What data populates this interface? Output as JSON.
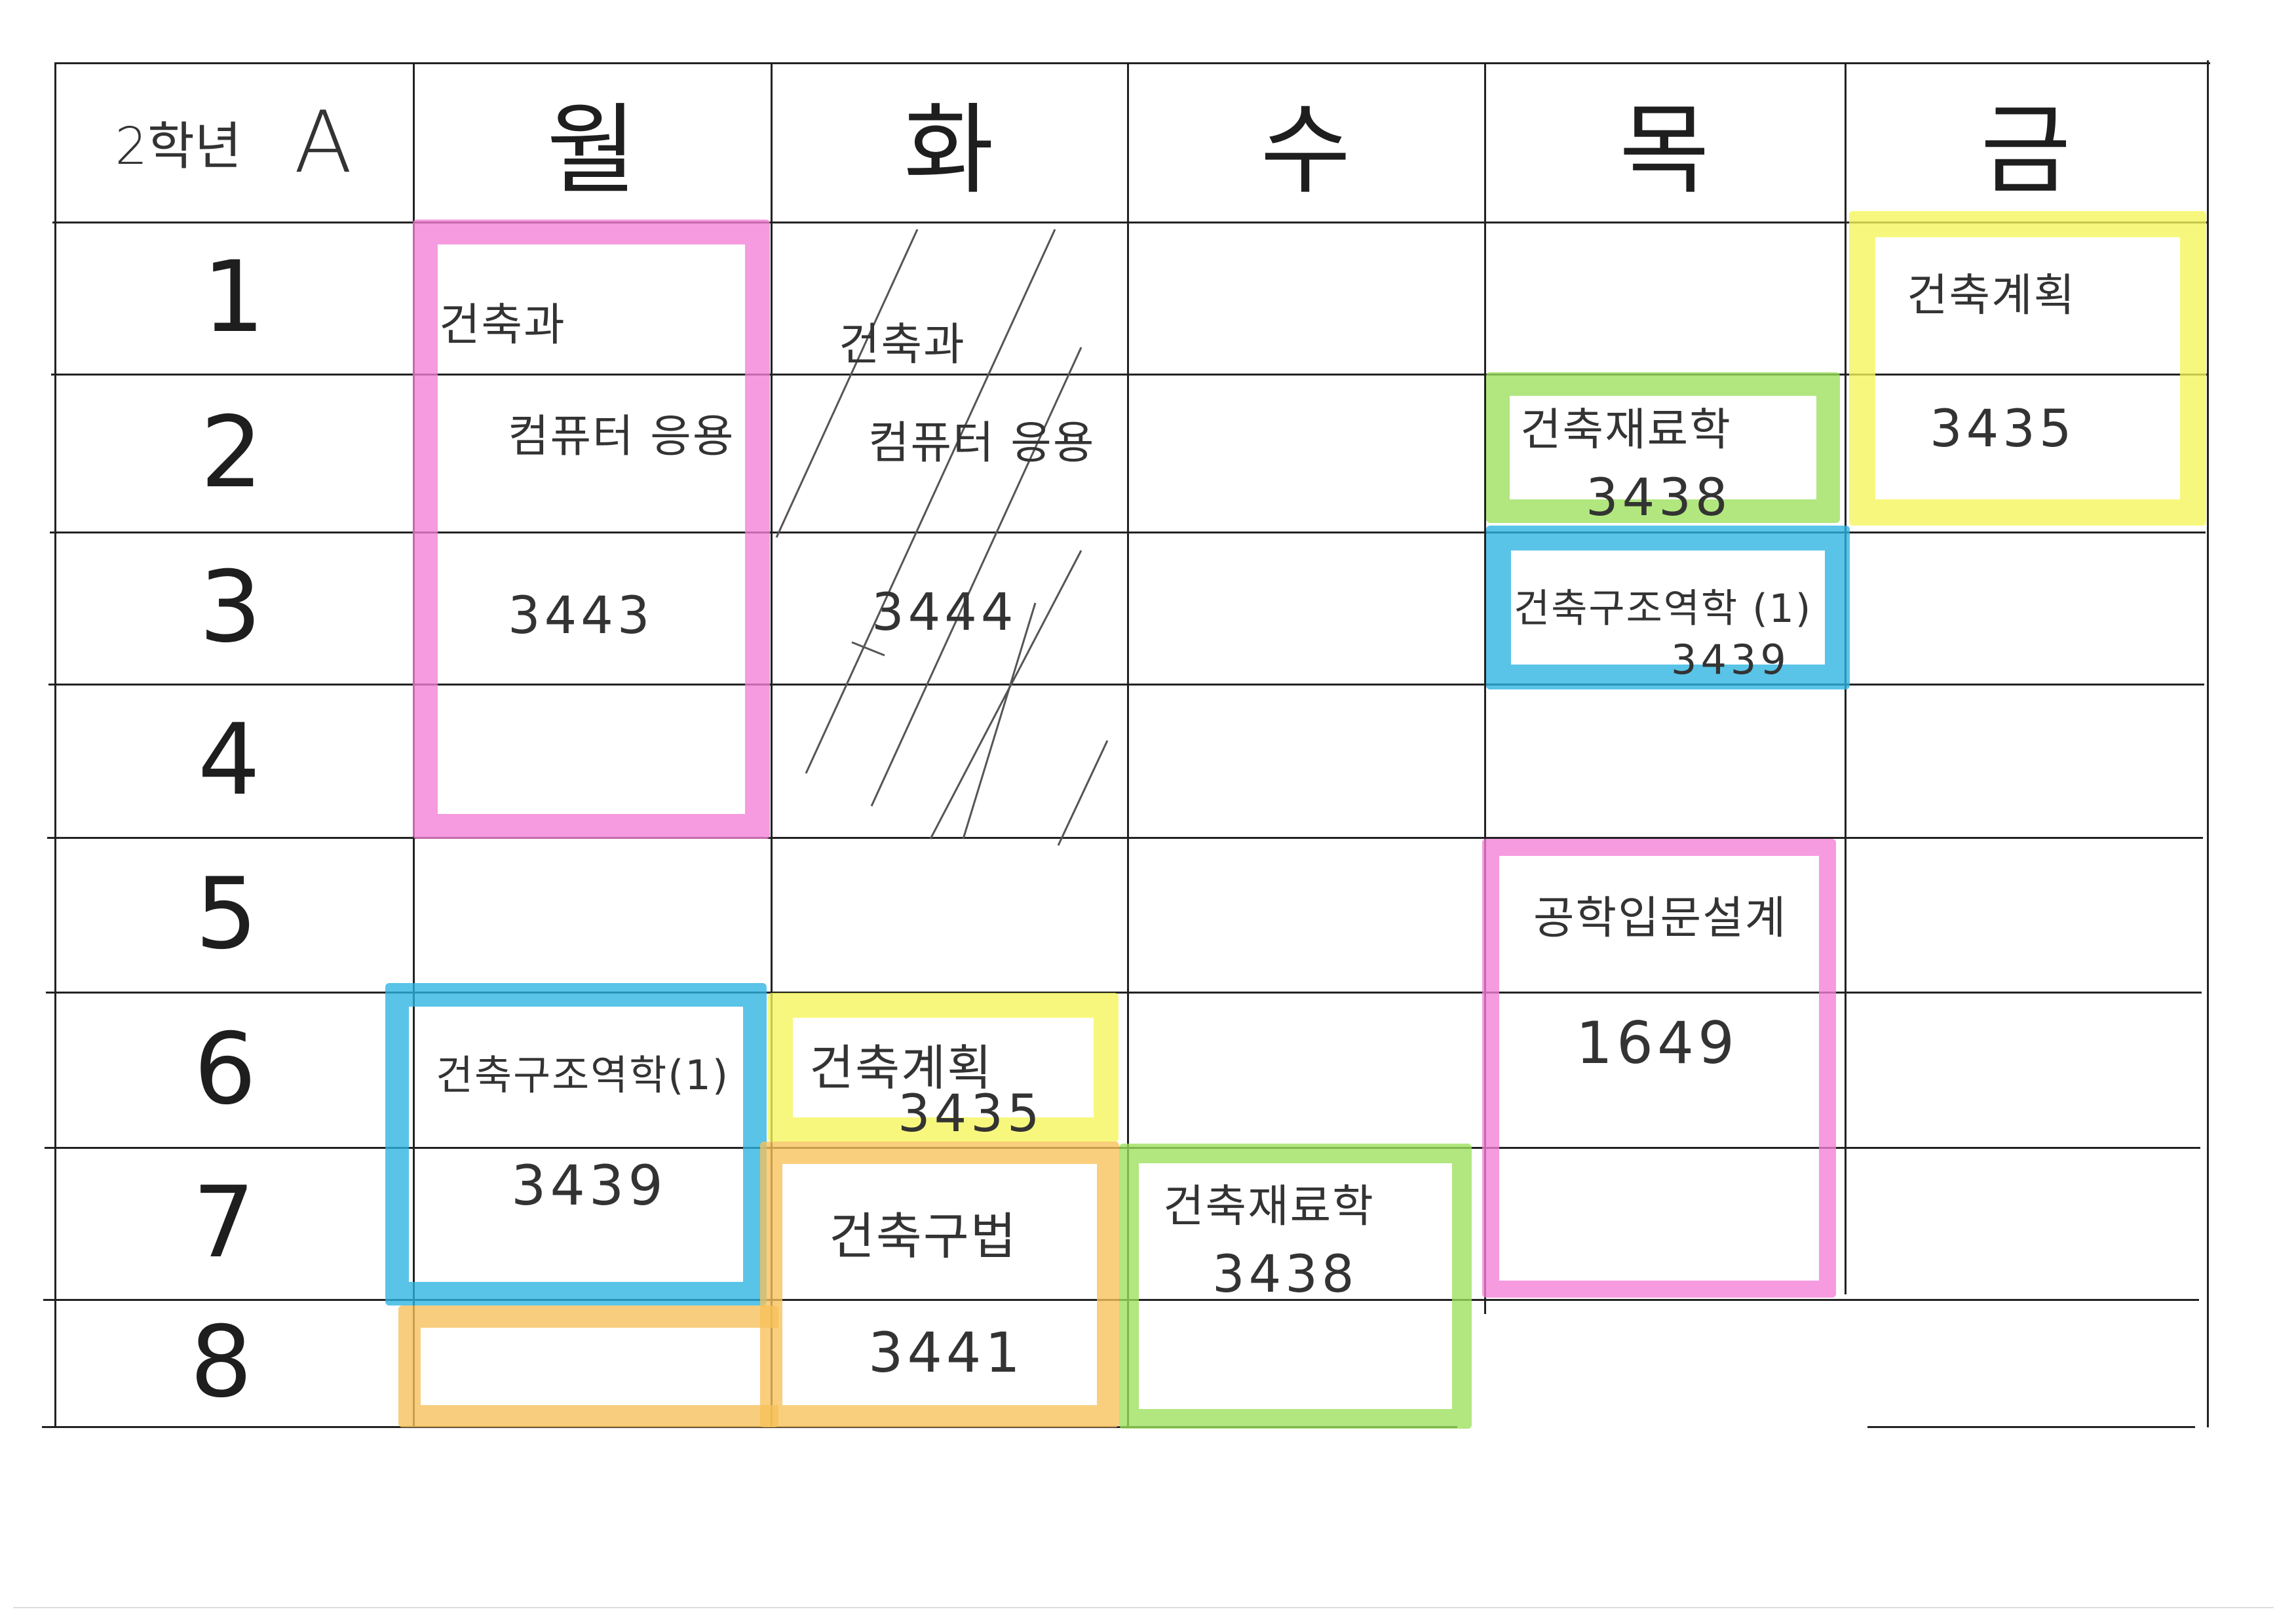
{
  "header": {
    "grade_label": "2학년",
    "section": "A",
    "days": [
      "월",
      "화",
      "수",
      "목",
      "금"
    ]
  },
  "periods": [
    "1",
    "2",
    "3",
    "4",
    "5",
    "6",
    "7",
    "8"
  ],
  "highlight_colors": {
    "pink": "#f47fd6",
    "yellow": "#f5f55a",
    "green": "#9be05a",
    "blue": "#2ab3e0",
    "orange": "#f7c15a"
  },
  "classes": [
    {
      "day": "월",
      "periods": "1-4",
      "name_line1": "건축과",
      "name_line2": "컴퓨터 응용",
      "room": "3443",
      "color": "pink"
    },
    {
      "day": "화",
      "periods": "1-4",
      "name_line1": "건축과",
      "name_line2": "컴퓨터 응용",
      "room": "3444",
      "color": "none",
      "crossed_out": true
    },
    {
      "day": "목",
      "periods": "2",
      "name": "건축재료학",
      "room": "3438",
      "color": "green"
    },
    {
      "day": "목",
      "periods": "3",
      "name": "건축구조역학 (1)",
      "room": "3439",
      "color": "blue"
    },
    {
      "day": "금",
      "periods": "1-2",
      "name": "건축계획",
      "room": "3435",
      "color": "yellow"
    },
    {
      "day": "목",
      "periods": "5-7",
      "name": "공학입문설계",
      "room": "1649",
      "color": "pink"
    },
    {
      "day": "월",
      "periods": "6-7",
      "name": "건축구조역학(1)",
      "room": "3439",
      "color": "blue"
    },
    {
      "day": "화",
      "periods": "6",
      "name": "건축계획",
      "room": "3435",
      "color": "yellow"
    },
    {
      "day": "화",
      "periods": "7-8",
      "name": "건축구법",
      "room": "3441",
      "color": "orange"
    },
    {
      "day": "수",
      "periods": "7-8",
      "name": "건축재료학",
      "room": "3438",
      "color": "green"
    }
  ]
}
